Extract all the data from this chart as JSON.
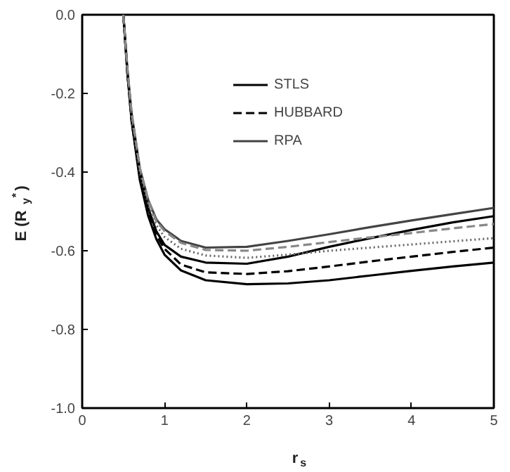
{
  "chart_data": {
    "type": "line",
    "xlabel": "r$_{s}$",
    "ylabel": "E (R$_{y}$$^{*}$)",
    "x": [
      0.5,
      0.55,
      0.6,
      0.7,
      0.8,
      0.9,
      1.0,
      1.2,
      1.5,
      2,
      2.5,
      3,
      3.5,
      4,
      4.5,
      5
    ],
    "series": [
      {
        "name": "STLS",
        "color": "#000000",
        "line_style": "solid",
        "values": [
          0.0,
          -0.15,
          -0.27,
          -0.42,
          -0.51,
          -0.57,
          -0.61,
          -0.65,
          -0.675,
          -0.685,
          -0.683,
          -0.675,
          -0.663,
          -0.651,
          -0.64,
          -0.63
        ]
      },
      {
        "name": "HUBBARD",
        "color": "#000000",
        "line_style": "dashed",
        "values": [
          0.0,
          -0.15,
          -0.27,
          -0.41,
          -0.5,
          -0.56,
          -0.595,
          -0.635,
          -0.655,
          -0.659,
          -0.652,
          -0.64,
          -0.627,
          -0.615,
          -0.603,
          -0.592
        ]
      },
      {
        "name": "RPA",
        "color": "#444444",
        "line_style": "solid",
        "values": [
          0.0,
          -0.14,
          -0.25,
          -0.39,
          -0.47,
          -0.52,
          -0.545,
          -0.575,
          -0.592,
          -0.59,
          -0.575,
          -0.558,
          -0.54,
          -0.523,
          -0.507,
          -0.491
        ]
      },
      {
        "color": "#000000",
        "line_style": "solid",
        "values": [
          0.0,
          -0.15,
          -0.26,
          -0.4,
          -0.49,
          -0.55,
          -0.585,
          -0.615,
          -0.63,
          -0.633,
          -0.615,
          -0.59,
          -0.568,
          -0.547,
          -0.528,
          -0.512
        ]
      },
      {
        "color": "#666666",
        "line_style": "dotted",
        "values": [
          0.0,
          -0.14,
          -0.26,
          -0.4,
          -0.48,
          -0.535,
          -0.565,
          -0.595,
          -0.612,
          -0.618,
          -0.61,
          -0.6,
          -0.592,
          -0.584,
          -0.576,
          -0.568
        ]
      },
      {
        "color": "#888888",
        "line_style": "dashed",
        "values": [
          0.0,
          -0.14,
          -0.25,
          -0.39,
          -0.47,
          -0.525,
          -0.55,
          -0.58,
          -0.598,
          -0.6,
          -0.59,
          -0.578,
          -0.566,
          -0.555,
          -0.543,
          -0.532
        ]
      }
    ],
    "xlim": [
      0,
      5
    ],
    "ylim": [
      -1.0,
      0.0
    ],
    "xticks": [
      0,
      1,
      2,
      3,
      4,
      5
    ],
    "yticks": [
      {
        "value": -1.0,
        "label": "-1.0"
      },
      {
        "value": -0.8,
        "label": "-0.8"
      },
      {
        "value": -0.6,
        "label": "-0.6"
      },
      {
        "value": -0.4,
        "label": "-0.4"
      },
      {
        "value": -0.2,
        "label": "-0.2"
      },
      {
        "value": 0.0,
        "label": "0.0"
      }
    ],
    "grid": false,
    "legend": "top",
    "marker": "none"
  }
}
